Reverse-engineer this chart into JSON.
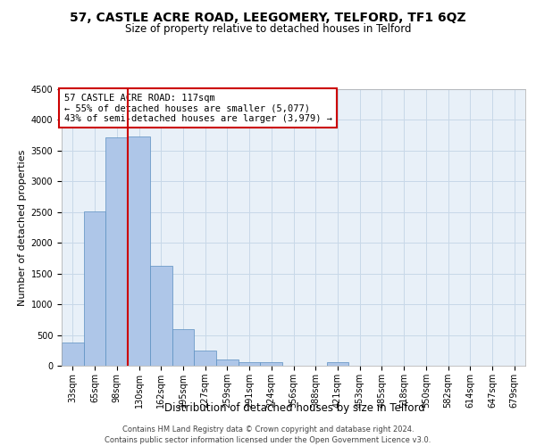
{
  "title": "57, CASTLE ACRE ROAD, LEEGOMERY, TELFORD, TF1 6QZ",
  "subtitle": "Size of property relative to detached houses in Telford",
  "xlabel": "Distribution of detached houses by size in Telford",
  "ylabel": "Number of detached properties",
  "footnote1": "Contains HM Land Registry data © Crown copyright and database right 2024.",
  "footnote2": "Contains public sector information licensed under the Open Government Licence v3.0.",
  "annotation_line1": "57 CASTLE ACRE ROAD: 117sqm",
  "annotation_line2": "← 55% of detached houses are smaller (5,077)",
  "annotation_line3": "43% of semi-detached houses are larger (3,979) →",
  "bar_categories": [
    "33sqm",
    "65sqm",
    "98sqm",
    "130sqm",
    "162sqm",
    "195sqm",
    "227sqm",
    "259sqm",
    "291sqm",
    "324sqm",
    "356sqm",
    "388sqm",
    "421sqm",
    "453sqm",
    "485sqm",
    "518sqm",
    "550sqm",
    "582sqm",
    "614sqm",
    "647sqm",
    "679sqm"
  ],
  "bar_values": [
    375,
    2510,
    3720,
    3730,
    1630,
    600,
    240,
    100,
    60,
    60,
    0,
    0,
    60,
    0,
    0,
    0,
    0,
    0,
    0,
    0,
    0
  ],
  "bar_color": "#aec6e8",
  "bar_edge_color": "#5a8fc0",
  "vline_color": "#cc0000",
  "annotation_box_color": "#cc0000",
  "ylim": [
    0,
    4500
  ],
  "yticks": [
    0,
    500,
    1000,
    1500,
    2000,
    2500,
    3000,
    3500,
    4000,
    4500
  ],
  "bg_color": "#ffffff",
  "axes_bg_color": "#e8f0f8",
  "grid_color": "#c8d8e8",
  "title_fontsize": 10,
  "subtitle_fontsize": 8.5,
  "xlabel_fontsize": 8.5,
  "ylabel_fontsize": 8,
  "tick_fontsize": 7,
  "annotation_fontsize": 7.5,
  "footnote_fontsize": 6
}
